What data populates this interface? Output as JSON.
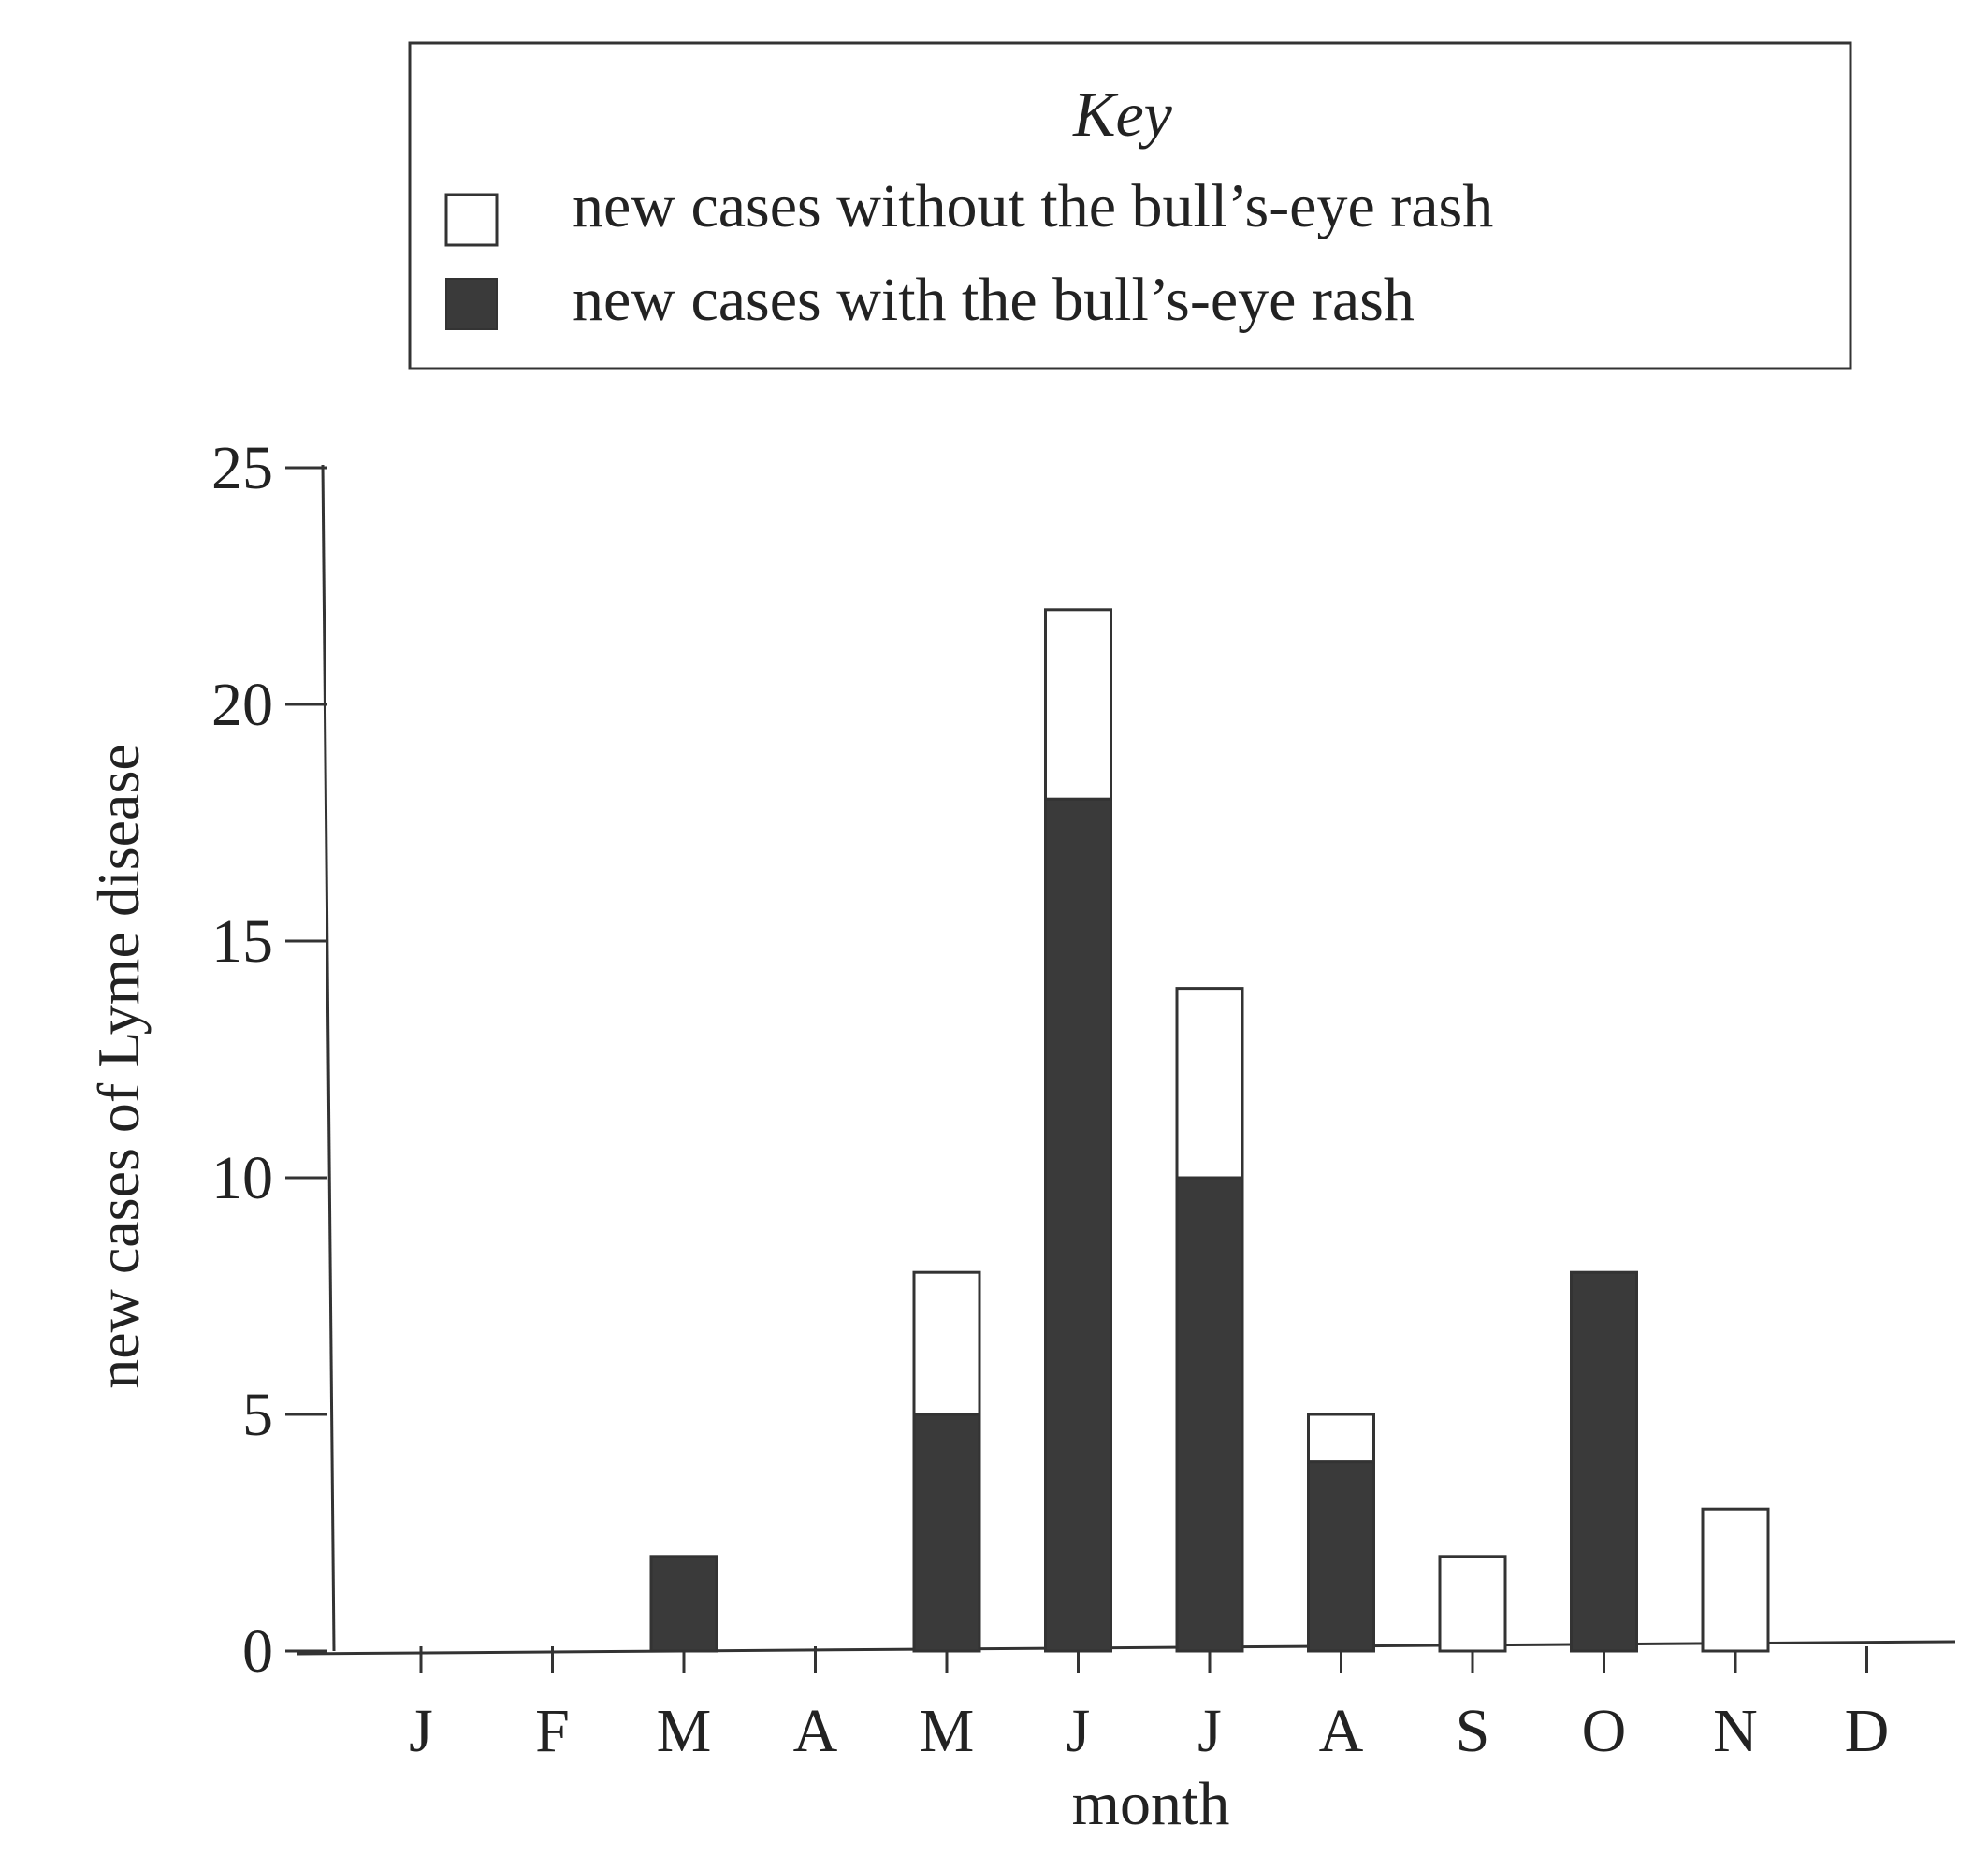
{
  "chart_data": {
    "type": "bar",
    "stacked": true,
    "legend": {
      "title": "Key",
      "placement": "top",
      "entries": [
        {
          "label": "new cases without the bull’s-eye rash",
          "color": "#ffffff"
        },
        {
          "label": "new cases with the bull’s-eye rash",
          "color": "#3a3a3a"
        }
      ]
    },
    "categories": [
      "J",
      "F",
      "M",
      "A",
      "M",
      "J",
      "J",
      "A",
      "S",
      "O",
      "N",
      "D"
    ],
    "series": [
      {
        "name": "new cases with the bull’s-eye rash",
        "color": "#3a3a3a",
        "values": [
          0,
          0,
          2,
          0,
          5,
          18,
          10,
          4,
          0,
          8,
          0,
          0
        ]
      },
      {
        "name": "new cases without the bull’s-eye rash",
        "color": "#ffffff",
        "values": [
          0,
          0,
          0,
          0,
          3,
          4,
          4,
          1,
          2,
          0,
          3,
          0
        ]
      }
    ],
    "ylim": [
      0,
      25
    ],
    "yticks": [
      "0",
      "5",
      "10",
      "15",
      "20",
      "25"
    ],
    "xlabel": "month",
    "ylabel": "new cases of Lyme disease",
    "grid": false
  }
}
